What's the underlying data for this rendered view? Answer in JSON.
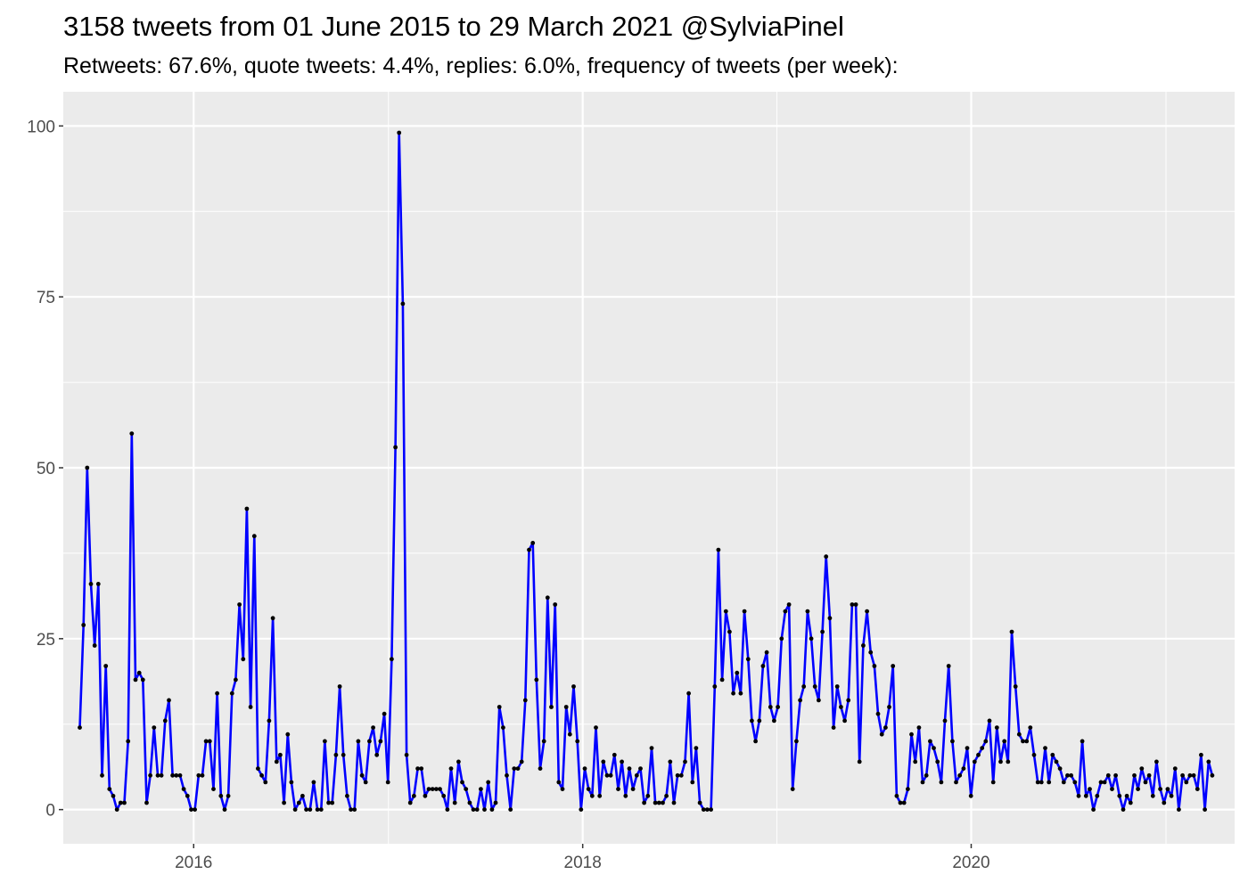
{
  "chart_data": {
    "type": "line",
    "title": "3158 tweets from 01 June 2015 to 29 March 2021 @SylviaPinel",
    "subtitle": "Retweets: 67.6%, quote tweets: 4.4%, replies: 6.0%, frequency of tweets (per week):",
    "xlabel": "",
    "ylabel": "",
    "x_first": "2015-06-01",
    "x_last": "2021-03-29",
    "period": "week",
    "xlim": [
      "2015-05-01",
      "2021-05-10"
    ],
    "ylim": [
      -5,
      105
    ],
    "x_ticks": [
      "2016",
      "2018",
      "2020"
    ],
    "y_ticks": [
      0,
      25,
      50,
      75,
      100
    ],
    "grid": true,
    "line_color": "#0000FF",
    "point_color": "#000000",
    "panel_color": "#EBEBEB",
    "values": [
      12,
      27,
      50,
      33,
      24,
      33,
      5,
      21,
      3,
      2,
      0,
      1,
      1,
      10,
      55,
      19,
      20,
      19,
      1,
      5,
      12,
      5,
      5,
      13,
      16,
      5,
      5,
      5,
      3,
      2,
      0,
      0,
      5,
      5,
      10,
      10,
      3,
      17,
      2,
      0,
      2,
      17,
      19,
      30,
      22,
      44,
      15,
      40,
      6,
      5,
      4,
      13,
      28,
      7,
      8,
      1,
      11,
      4,
      0,
      1,
      2,
      0,
      0,
      4,
      0,
      0,
      10,
      1,
      1,
      8,
      18,
      8,
      2,
      0,
      0,
      10,
      5,
      4,
      10,
      12,
      8,
      10,
      14,
      4,
      22,
      53,
      99,
      74,
      8,
      1,
      2,
      6,
      6,
      2,
      3,
      3,
      3,
      3,
      2,
      0,
      6,
      1,
      7,
      4,
      3,
      1,
      0,
      0,
      3,
      0,
      4,
      0,
      1,
      15,
      12,
      5,
      0,
      6,
      6,
      7,
      16,
      38,
      39,
      19,
      6,
      10,
      31,
      15,
      30,
      4,
      3,
      15,
      11,
      18,
      10,
      0,
      6,
      3,
      2,
      12,
      2,
      7,
      5,
      5,
      8,
      3,
      7,
      2,
      6,
      3,
      5,
      6,
      1,
      2,
      9,
      1,
      1,
      1,
      2,
      7,
      1,
      5,
      5,
      7,
      17,
      4,
      9,
      1,
      0,
      0,
      0,
      18,
      38,
      19,
      29,
      26,
      17,
      20,
      17,
      29,
      22,
      13,
      10,
      13,
      21,
      23,
      15,
      13,
      15,
      25,
      29,
      30,
      3,
      10,
      16,
      18,
      29,
      25,
      18,
      16,
      26,
      37,
      28,
      12,
      18,
      15,
      13,
      16,
      30,
      30,
      7,
      24,
      29,
      23,
      21,
      14,
      11,
      12,
      15,
      21,
      2,
      1,
      1,
      3,
      11,
      7,
      12,
      4,
      5,
      10,
      9,
      7,
      4,
      13,
      21,
      10,
      4,
      5,
      6,
      9,
      2,
      7,
      8,
      9,
      10,
      13,
      4,
      12,
      7,
      10,
      7,
      26,
      18,
      11,
      10,
      10,
      12,
      8,
      4,
      4,
      9,
      4,
      8,
      7,
      6,
      4,
      5,
      5,
      4,
      2,
      10,
      2,
      3,
      0,
      2,
      4,
      4,
      5,
      3,
      5,
      2,
      0,
      2,
      1,
      5,
      3,
      6,
      4,
      5,
      2,
      7,
      3,
      1,
      3,
      2,
      6,
      0,
      5,
      4,
      5,
      5,
      3,
      8,
      0,
      7,
      5
    ]
  }
}
